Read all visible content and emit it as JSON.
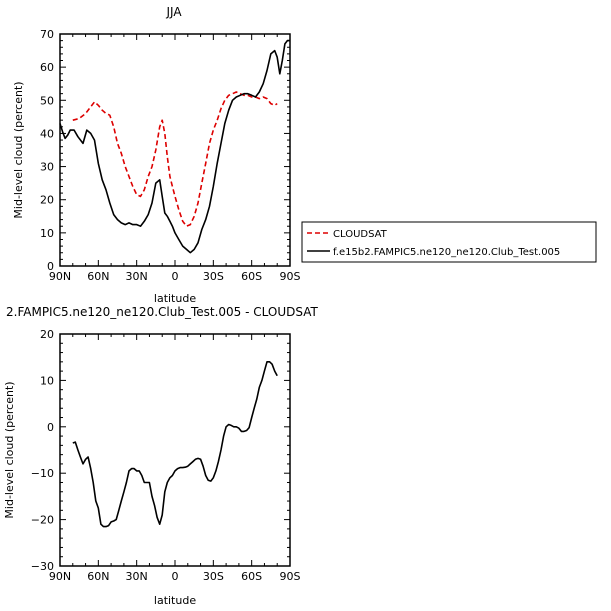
{
  "chart_data": [
    {
      "type": "line",
      "title": "JJA",
      "xlabel": "latitude",
      "ylabel": "Mid-level cloud (percent)",
      "xlim": [
        90,
        -90
      ],
      "ylim": [
        0,
        70
      ],
      "xticks": [
        90,
        60,
        30,
        0,
        -30,
        -60,
        -90
      ],
      "xtick_labels": [
        "90N",
        "60N",
        "30N",
        "0",
        "30S",
        "60S",
        "90S"
      ],
      "yticks": [
        0,
        10,
        20,
        30,
        40,
        50,
        60,
        70
      ],
      "ytick_labels": [
        "0",
        "10",
        "20",
        "30",
        "40",
        "50",
        "60",
        "70"
      ],
      "grid": false,
      "legend_position": "right",
      "series": [
        {
          "name": "CLOUDSAT",
          "color": "#dd0000",
          "dash": "dashed",
          "x": [
            80,
            75,
            70,
            66,
            63,
            60,
            57,
            54,
            51,
            48,
            45,
            42,
            39,
            36,
            33,
            30,
            27,
            24,
            21,
            18,
            15,
            12,
            10,
            8,
            6,
            4,
            2,
            0,
            -3,
            -6,
            -9,
            -12,
            -15,
            -18,
            -21,
            -24,
            -27,
            -30,
            -33,
            -36,
            -39,
            -42,
            -45,
            -48,
            -51,
            -54,
            -57,
            -60,
            -63,
            -66,
            -69,
            -72,
            -75,
            -78,
            -80
          ],
          "y": [
            44,
            44.5,
            46,
            48,
            49.5,
            48.5,
            47,
            46,
            45.5,
            42,
            37,
            34,
            30,
            27,
            24,
            21.5,
            21,
            23,
            27,
            30,
            35,
            42,
            44,
            40,
            33,
            27,
            24,
            21,
            17,
            13.5,
            12,
            12.5,
            15,
            19,
            25,
            31,
            37,
            41,
            44,
            47.5,
            50,
            51.5,
            52,
            52.5,
            52,
            51.5,
            51.5,
            51,
            51,
            50.5,
            51,
            50.5,
            49,
            48.5,
            49
          ]
        },
        {
          "name": "f.e15b2.FAMPIC5.ne120_ne120.Club_Test.005",
          "color": "#000000",
          "dash": "solid",
          "x": [
            90,
            88,
            86,
            84,
            82,
            79,
            76,
            72,
            69,
            66,
            63,
            60,
            57,
            54,
            51,
            48,
            45,
            42,
            39,
            36,
            33,
            30,
            27,
            24,
            21,
            18,
            15,
            12,
            10,
            8,
            6,
            4,
            2,
            0,
            -3,
            -6,
            -9,
            -12,
            -15,
            -18,
            -21,
            -24,
            -27,
            -30,
            -33,
            -36,
            -39,
            -42,
            -45,
            -48,
            -51,
            -54,
            -57,
            -60,
            -63,
            -66,
            -69,
            -72,
            -75,
            -78,
            -80,
            -82,
            -84,
            -86,
            -88,
            -90
          ],
          "y": [
            43,
            40.5,
            38.5,
            39.5,
            41,
            41,
            39,
            37,
            41,
            40,
            38,
            31,
            26,
            23,
            19,
            15.5,
            14,
            13,
            12.5,
            13,
            12.5,
            12.5,
            12,
            13.5,
            15.5,
            19,
            25,
            26,
            21,
            16,
            15,
            13.5,
            12,
            10,
            8,
            6,
            5,
            4,
            5,
            7,
            11,
            14,
            18,
            24,
            31,
            37,
            43,
            47,
            50,
            51,
            51.5,
            52,
            52,
            51.5,
            51,
            52.5,
            55,
            59,
            64,
            65,
            63,
            58,
            62,
            67,
            68,
            68
          ]
        }
      ]
    },
    {
      "type": "line",
      "title": "2.FAMPIC5.ne120_ne120.Club_Test.005 - CLOUDSAT",
      "xlabel": "latitude",
      "ylabel": "Mid-level cloud (percent)",
      "xlim": [
        90,
        -90
      ],
      "ylim": [
        -30,
        20
      ],
      "xticks": [
        90,
        60,
        30,
        0,
        -30,
        -60,
        -90
      ],
      "xtick_labels": [
        "90N",
        "60N",
        "30N",
        "0",
        "30S",
        "60S",
        "90S"
      ],
      "yticks": [
        -30,
        -20,
        -10,
        0,
        10,
        20
      ],
      "ytick_labels": [
        "−30",
        "−20",
        "−10",
        "0",
        "10",
        "20"
      ],
      "grid": false,
      "series": [
        {
          "color": "#000000",
          "dash": "solid",
          "x": [
            80,
            78,
            76,
            74,
            72,
            70,
            68,
            66,
            64,
            62,
            60,
            58,
            56,
            54,
            52,
            50,
            48,
            46,
            44,
            42,
            40,
            38,
            36,
            34,
            32,
            30,
            28,
            26,
            24,
            22,
            20,
            18,
            16,
            14,
            12,
            10,
            8,
            6,
            4,
            2,
            0,
            -2,
            -4,
            -6,
            -8,
            -10,
            -12,
            -14,
            -16,
            -18,
            -20,
            -22,
            -24,
            -26,
            -28,
            -30,
            -32,
            -34,
            -36,
            -38,
            -40,
            -42,
            -44,
            -46,
            -48,
            -50,
            -52,
            -54,
            -56,
            -58,
            -60,
            -62,
            -64,
            -66,
            -68,
            -70,
            -72,
            -74,
            -76,
            -78,
            -80
          ],
          "y": [
            -3.5,
            -3.3,
            -5,
            -6.5,
            -8,
            -7,
            -6.5,
            -9,
            -12,
            -16,
            -17.5,
            -21,
            -21.5,
            -21.5,
            -21.3,
            -20.5,
            -20.3,
            -20,
            -18,
            -16,
            -14,
            -12,
            -9.5,
            -9,
            -9,
            -9.5,
            -9.5,
            -10.5,
            -12,
            -12,
            -12,
            -15,
            -17,
            -19.5,
            -21,
            -19,
            -14,
            -12,
            -11,
            -10.5,
            -9.5,
            -9,
            -8.8,
            -8.8,
            -8.7,
            -8.5,
            -8,
            -7.5,
            -7,
            -6.8,
            -7,
            -8.5,
            -10.5,
            -11.5,
            -11.7,
            -11,
            -9.5,
            -7.5,
            -5,
            -2,
            0,
            0.5,
            0.3,
            0,
            0,
            -0.3,
            -1,
            -1,
            -0.8,
            -0.2,
            2,
            4,
            6,
            8.5,
            10,
            12,
            14,
            14,
            13.5,
            12,
            11
          ]
        }
      ]
    }
  ]
}
